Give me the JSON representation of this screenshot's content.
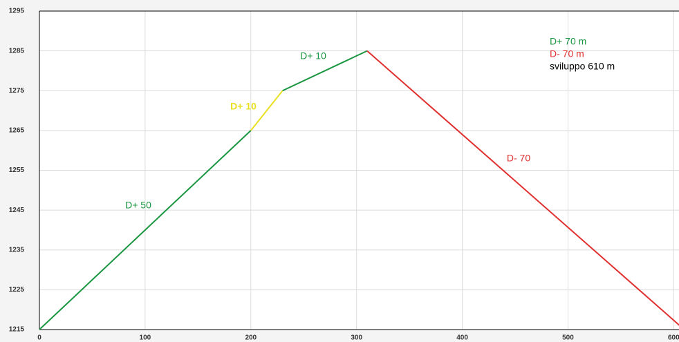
{
  "chart_data": {
    "type": "line",
    "series": [
      {
        "color": "#1a9641",
        "x": [
          0,
          200
        ],
        "values": [
          1215,
          1265
        ]
      },
      {
        "color": "#e8e020",
        "x": [
          200,
          230
        ],
        "values": [
          1265,
          1275
        ]
      },
      {
        "color": "#1a9641",
        "x": [
          230,
          310
        ],
        "values": [
          1275,
          1285
        ]
      },
      {
        "color": "#e03030",
        "x": [
          310,
          610
        ],
        "values": [
          1285,
          1215
        ]
      }
    ],
    "annotations": [
      {
        "text": "D+ 50",
        "color": "#1a9641"
      },
      {
        "text": "D+ 10",
        "color": "#e8e020"
      },
      {
        "text": "D+ 10",
        "color": "#1a9641"
      },
      {
        "text": "D- 70",
        "color": "#e03030"
      }
    ],
    "summary": [
      {
        "text": "D+ 70 m",
        "color": "#1a9641"
      },
      {
        "text": "D- 70 m",
        "color": "#e03030"
      },
      {
        "text": "sviluppo 610 m",
        "color": "#000000"
      }
    ],
    "xlim": [
      0,
      605
    ],
    "xticks": [
      0,
      100,
      200,
      300,
      400,
      500,
      600
    ],
    "ylim": [
      1215,
      1295
    ],
    "yticks": [
      1215,
      1225,
      1235,
      1245,
      1255,
      1265,
      1275,
      1285,
      1295
    ],
    "grid": true
  }
}
